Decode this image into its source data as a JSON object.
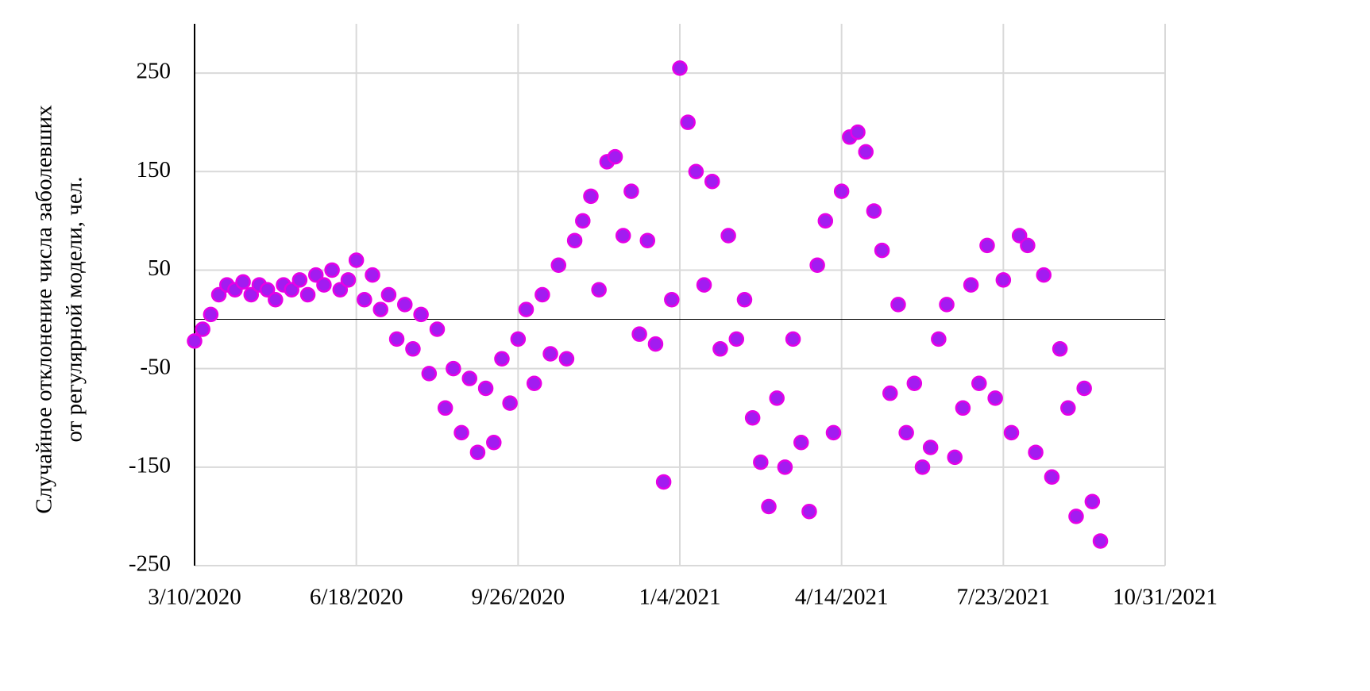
{
  "chart_data": {
    "type": "scatter",
    "ylabel": [
      "Случайное отклонение числа заболевших",
      "от регулярной модели, чел."
    ],
    "xlim": [
      "3/10/2020",
      "10/31/2021"
    ],
    "xticks": [
      "3/10/2020",
      "6/18/2020",
      "9/26/2020",
      "1/4/2021",
      "4/14/2021",
      "7/23/2021",
      "10/31/2021"
    ],
    "ylim": [
      -250,
      300
    ],
    "yticks": [
      -250,
      -150,
      -50,
      50,
      150,
      250
    ],
    "grid": true,
    "zero_line": true,
    "series": [
      {
        "color": "#a21cf0",
        "edgecolor": "#e600e6",
        "x": [
          "3/10/2020",
          "3/15/2020",
          "3/20/2020",
          "3/25/2020",
          "3/30/2020",
          "4/4/2020",
          "4/9/2020",
          "4/14/2020",
          "4/19/2020",
          "4/24/2020",
          "4/29/2020",
          "5/4/2020",
          "5/9/2020",
          "5/14/2020",
          "5/19/2020",
          "5/24/2020",
          "5/29/2020",
          "6/3/2020",
          "6/8/2020",
          "6/13/2020",
          "6/18/2020",
          "6/23/2020",
          "6/28/2020",
          "7/3/2020",
          "7/8/2020",
          "7/13/2020",
          "7/18/2020",
          "7/23/2020",
          "7/28/2020",
          "8/2/2020",
          "8/7/2020",
          "8/12/2020",
          "8/17/2020",
          "8/22/2020",
          "8/27/2020",
          "9/1/2020",
          "9/6/2020",
          "9/11/2020",
          "9/16/2020",
          "9/21/2020",
          "9/26/2020",
          "10/1/2020",
          "10/6/2020",
          "10/11/2020",
          "10/16/2020",
          "10/21/2020",
          "10/26/2020",
          "10/31/2020",
          "11/5/2020",
          "11/10/2020",
          "11/15/2020",
          "11/20/2020",
          "11/25/2020",
          "11/30/2020",
          "12/5/2020",
          "12/10/2020",
          "12/15/2020",
          "12/20/2020",
          "12/25/2020",
          "12/30/2020",
          "1/4/2021",
          "1/9/2021",
          "1/14/2021",
          "1/19/2021",
          "1/24/2021",
          "1/29/2021",
          "2/3/2021",
          "2/8/2021",
          "2/13/2021",
          "2/18/2021",
          "2/23/2021",
          "2/28/2021",
          "3/5/2021",
          "3/10/2021",
          "3/15/2021",
          "3/20/2021",
          "3/25/2021",
          "3/30/2021",
          "4/4/2021",
          "4/9/2021",
          "4/14/2021",
          "4/19/2021",
          "4/24/2021",
          "4/29/2021",
          "5/4/2021",
          "5/9/2021",
          "5/14/2021",
          "5/19/2021",
          "5/24/2021",
          "5/29/2021",
          "6/3/2021",
          "6/8/2021",
          "6/13/2021",
          "6/18/2021",
          "6/23/2021",
          "6/28/2021",
          "7/3/2021",
          "7/8/2021",
          "7/13/2021",
          "7/18/2021",
          "7/23/2021",
          "7/28/2021",
          "8/2/2021",
          "8/7/2021",
          "8/12/2021",
          "8/17/2021",
          "8/22/2021",
          "8/27/2021",
          "9/1/2021",
          "9/6/2021",
          "9/11/2021",
          "9/16/2021",
          "9/21/2021"
        ],
        "values": [
          -22,
          -10,
          5,
          25,
          35,
          30,
          38,
          25,
          35,
          30,
          20,
          35,
          30,
          40,
          25,
          45,
          35,
          50,
          30,
          40,
          60,
          20,
          45,
          10,
          25,
          -20,
          15,
          -30,
          5,
          -55,
          -10,
          -90,
          -50,
          -115,
          -60,
          -135,
          -70,
          -125,
          -40,
          -85,
          -20,
          10,
          -65,
          25,
          -35,
          55,
          -40,
          80,
          100,
          125,
          30,
          160,
          165,
          85,
          130,
          -15,
          80,
          -25,
          -165,
          20,
          255,
          200,
          150,
          35,
          140,
          -30,
          85,
          -20,
          20,
          -100,
          -145,
          -190,
          -80,
          -150,
          -20,
          -125,
          -195,
          55,
          100,
          -115,
          130,
          185,
          190,
          170,
          110,
          70,
          -75,
          15,
          -115,
          -65,
          -150,
          -130,
          -20,
          15,
          -140,
          -90,
          35,
          -65,
          75,
          -80,
          40,
          -115,
          85,
          75,
          -135,
          45,
          -160,
          -30,
          -90,
          -200,
          -70,
          -185,
          -225
        ]
      }
    ]
  }
}
